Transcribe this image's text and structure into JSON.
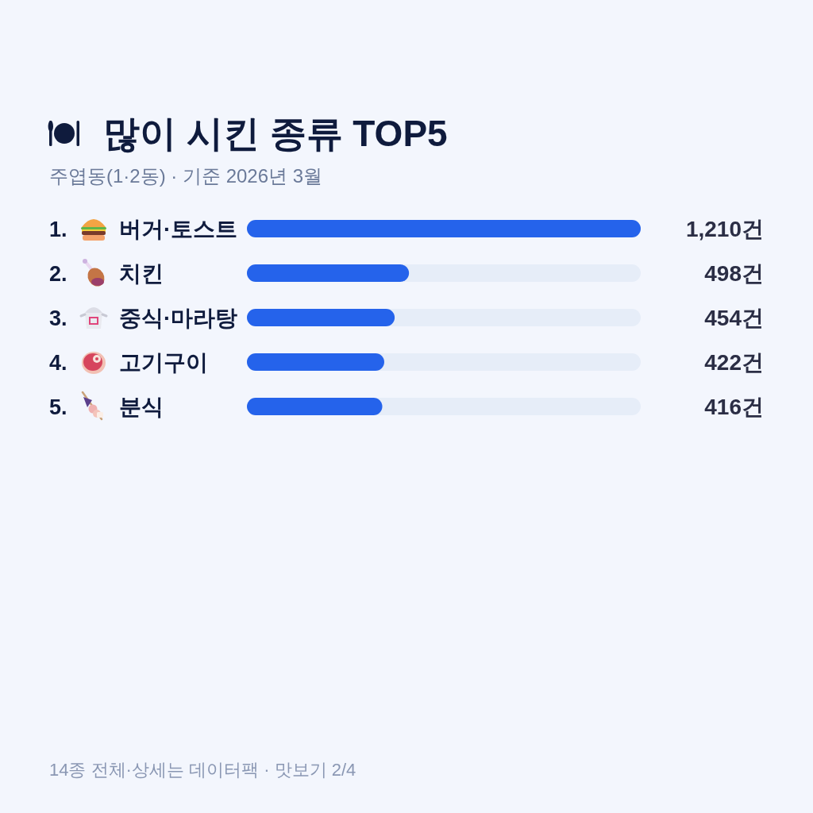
{
  "chart_data": {
    "type": "bar",
    "orientation": "horizontal",
    "title": "많이 시킨 종류 TOP5",
    "subtitle": "주엽동(1·2동) · 기준 2026년 3월",
    "categories": [
      "버거·토스트",
      "치킨",
      "중식·마라탕",
      "고기구이",
      "분식"
    ],
    "values": [
      1210,
      498,
      454,
      422,
      416
    ],
    "value_labels": [
      "1,210건",
      "498건",
      "454건",
      "422건",
      "416건"
    ],
    "color": "#2563eb",
    "annotations": [
      "1.",
      "2.",
      "3.",
      "4.",
      "5.",
      "14종 전체·상세는 데이터팩 · 맛보기 2/4"
    ]
  }
}
